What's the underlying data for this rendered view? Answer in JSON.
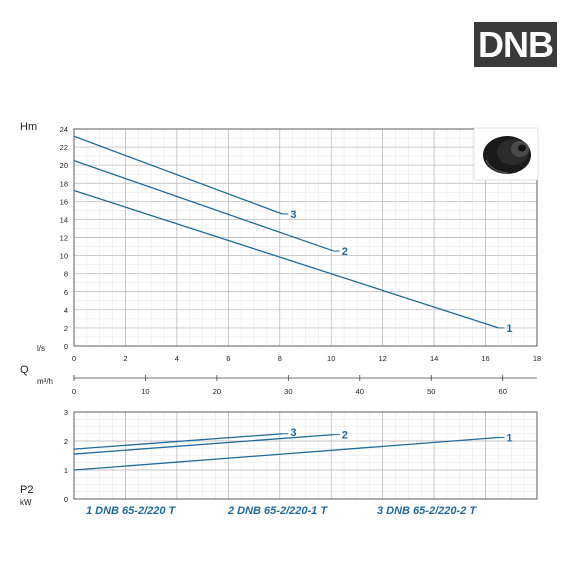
{
  "brand": "DNB",
  "colors": {
    "curve": "#1e6b9c",
    "grid_major": "#b5b5b5",
    "grid_minor": "#e6e6e6",
    "badge_bg": "#3a3a3a"
  },
  "legend": [
    {
      "id": "1",
      "label": "1  DNB 65-2/220 T"
    },
    {
      "id": "2",
      "label": "2  DNB 65-2/220-1 T"
    },
    {
      "id": "3",
      "label": "3  DNB 65-2/220-2 T"
    }
  ],
  "chart_data": [
    {
      "type": "line",
      "ylabel": "Hm",
      "xlabel": "Q",
      "x_unit": "l/s",
      "x_unit_secondary": "m³/h",
      "xlim": [
        0,
        18
      ],
      "ylim": [
        0,
        24
      ],
      "x_ticks": [
        "0",
        "2",
        "4",
        "6",
        "8",
        "10",
        "12",
        "14",
        "16",
        "18"
      ],
      "y_ticks": [
        "0",
        "2",
        "4",
        "6",
        "8",
        "10",
        "12",
        "14",
        "16",
        "18",
        "20",
        "22",
        "24"
      ],
      "x2_ticks": [
        "0",
        "10",
        "20",
        "30",
        "40",
        "50",
        "60"
      ],
      "grid": true,
      "series": [
        {
          "name": "1",
          "x": [
            0,
            16.5
          ],
          "y": [
            17.2,
            2.0
          ]
        },
        {
          "name": "2",
          "x": [
            0,
            10.1
          ],
          "y": [
            20.5,
            10.5
          ]
        },
        {
          "name": "3",
          "x": [
            0,
            8.1
          ],
          "y": [
            23.2,
            14.6
          ]
        }
      ]
    },
    {
      "type": "line",
      "ylabel": "P2",
      "y_unit": "kW",
      "xlim": [
        0,
        18
      ],
      "ylim": [
        0,
        3
      ],
      "y_ticks": [
        "0",
        "1",
        "2",
        "3"
      ],
      "grid": true,
      "series": [
        {
          "name": "1",
          "x": [
            0,
            16.5
          ],
          "y": [
            1.0,
            2.12
          ]
        },
        {
          "name": "2",
          "x": [
            0,
            10.1
          ],
          "y": [
            1.55,
            2.22
          ]
        },
        {
          "name": "3",
          "x": [
            0,
            8.1
          ],
          "y": [
            1.72,
            2.25
          ]
        }
      ]
    }
  ]
}
